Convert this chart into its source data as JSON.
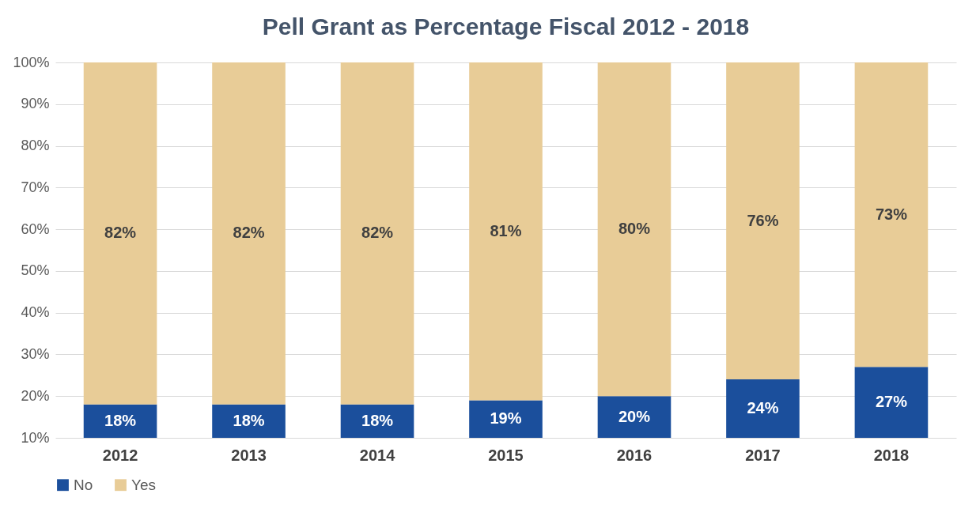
{
  "chart_data": {
    "type": "bar",
    "stacked": true,
    "title": "Pell Grant as Percentage Fiscal 2012 - 2018",
    "categories": [
      "2012",
      "2013",
      "2014",
      "2015",
      "2016",
      "2017",
      "2018"
    ],
    "series": [
      {
        "name": "No",
        "color": "#1b4f9c",
        "values": [
          18,
          18,
          18,
          19,
          20,
          24,
          27
        ],
        "value_labels": [
          "18%",
          "18%",
          "18%",
          "19%",
          "20%",
          "24%",
          "27%"
        ]
      },
      {
        "name": "Yes",
        "color": "#e8cc97",
        "values": [
          82,
          82,
          82,
          81,
          80,
          76,
          73
        ],
        "value_labels": [
          "82%",
          "82%",
          "82%",
          "81%",
          "80%",
          "76%",
          "73%"
        ]
      }
    ],
    "ylim": [
      10,
      100
    ],
    "yticks": [
      {
        "value": 10,
        "label": "10%"
      },
      {
        "value": 20,
        "label": "20%"
      },
      {
        "value": 30,
        "label": "30%"
      },
      {
        "value": 40,
        "label": "40%"
      },
      {
        "value": 50,
        "label": "50%"
      },
      {
        "value": 60,
        "label": "60%"
      },
      {
        "value": 70,
        "label": "70%"
      },
      {
        "value": 80,
        "label": "80%"
      },
      {
        "value": 90,
        "label": "90%"
      },
      {
        "value": 100,
        "label": "100%"
      }
    ],
    "grid": "y",
    "legend": "bottom"
  }
}
